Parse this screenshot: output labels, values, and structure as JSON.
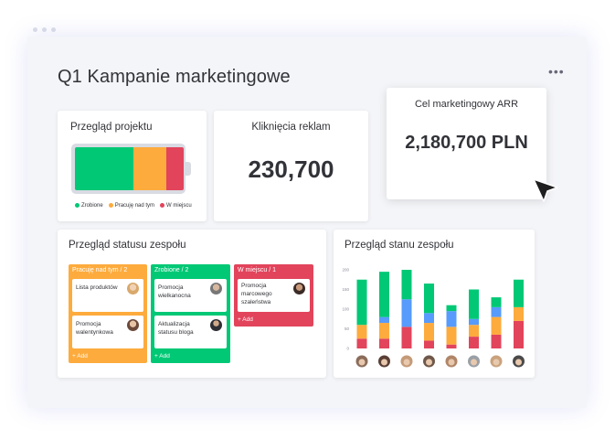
{
  "app": {
    "title": "Q1 Kampanie marketingowe",
    "menu_icon": "more-horizontal-icon",
    "more_label": "•••"
  },
  "colors": {
    "done": "#00c875",
    "working": "#fdab3d",
    "stuck": "#e2445c",
    "blue": "#579bfc",
    "text": "#323338"
  },
  "project_overview": {
    "title": "Przegląd projektu",
    "progress": {
      "done": 0.54,
      "working": 0.3,
      "stuck": 0.16
    },
    "legend": [
      "Zrobione",
      "Pracuję nad tym",
      "W miejscu"
    ]
  },
  "ad_clicks": {
    "title": "Kliknięcia reklam",
    "value": "230,700"
  },
  "arr_goal": {
    "title": "Cel marketingowy ARR",
    "value": "2,180,700 PLN"
  },
  "team_status": {
    "title": "Przegląd statusu zespołu",
    "columns": [
      {
        "header": "Pracuję nad tym / 2",
        "color": "#fdab3d",
        "items": [
          {
            "text": "Lista produktów",
            "avatar": "avatar-woman-blonde"
          },
          {
            "text": "Promocja walentynkowa",
            "avatar": "avatar-woman-brunette"
          }
        ],
        "add": "+ Add"
      },
      {
        "header": "Zrobione / 2",
        "color": "#00c875",
        "items": [
          {
            "text": "Promocja wielkanocna",
            "avatar": "avatar-man-gray"
          },
          {
            "text": "Aktualizacja statusu bloga",
            "avatar": "avatar-man-suit"
          }
        ],
        "add": "+ Add"
      },
      {
        "header": "W miejscu / 1",
        "color": "#e2445c",
        "items": [
          {
            "text": "Promocja marcowego szaleństwa",
            "avatar": "avatar-woman-dark"
          }
        ],
        "add": "+ Add"
      }
    ]
  },
  "team_state": {
    "title": "Przegląd stanu zespołu"
  },
  "chart_data": {
    "type": "bar",
    "stacked": true,
    "y_ticks": [
      "200",
      "150",
      "100",
      "50",
      "0"
    ],
    "ylim": [
      0,
      200
    ],
    "categories": [
      "1",
      "2",
      "3",
      "4",
      "5",
      "6",
      "7",
      "8"
    ],
    "series": [
      {
        "color": "#e2445c",
        "values": [
          25,
          25,
          55,
          20,
          10,
          30,
          35,
          70
        ]
      },
      {
        "color": "#fdab3d",
        "values": [
          35,
          40,
          0,
          45,
          45,
          30,
          45,
          35
        ]
      },
      {
        "color": "#579bfc",
        "values": [
          0,
          15,
          70,
          25,
          40,
          15,
          25,
          0
        ]
      },
      {
        "color": "#00c875",
        "values": [
          115,
          115,
          75,
          75,
          15,
          75,
          25,
          70
        ]
      }
    ],
    "avatar_colors": [
      "#8a6c5a",
      "#5a3f36",
      "#c49a78",
      "#6f584a",
      "#b08668",
      "#9aa0a6",
      "#c9a27e",
      "#4a4a4a"
    ],
    "grid": false,
    "legend": "none"
  }
}
